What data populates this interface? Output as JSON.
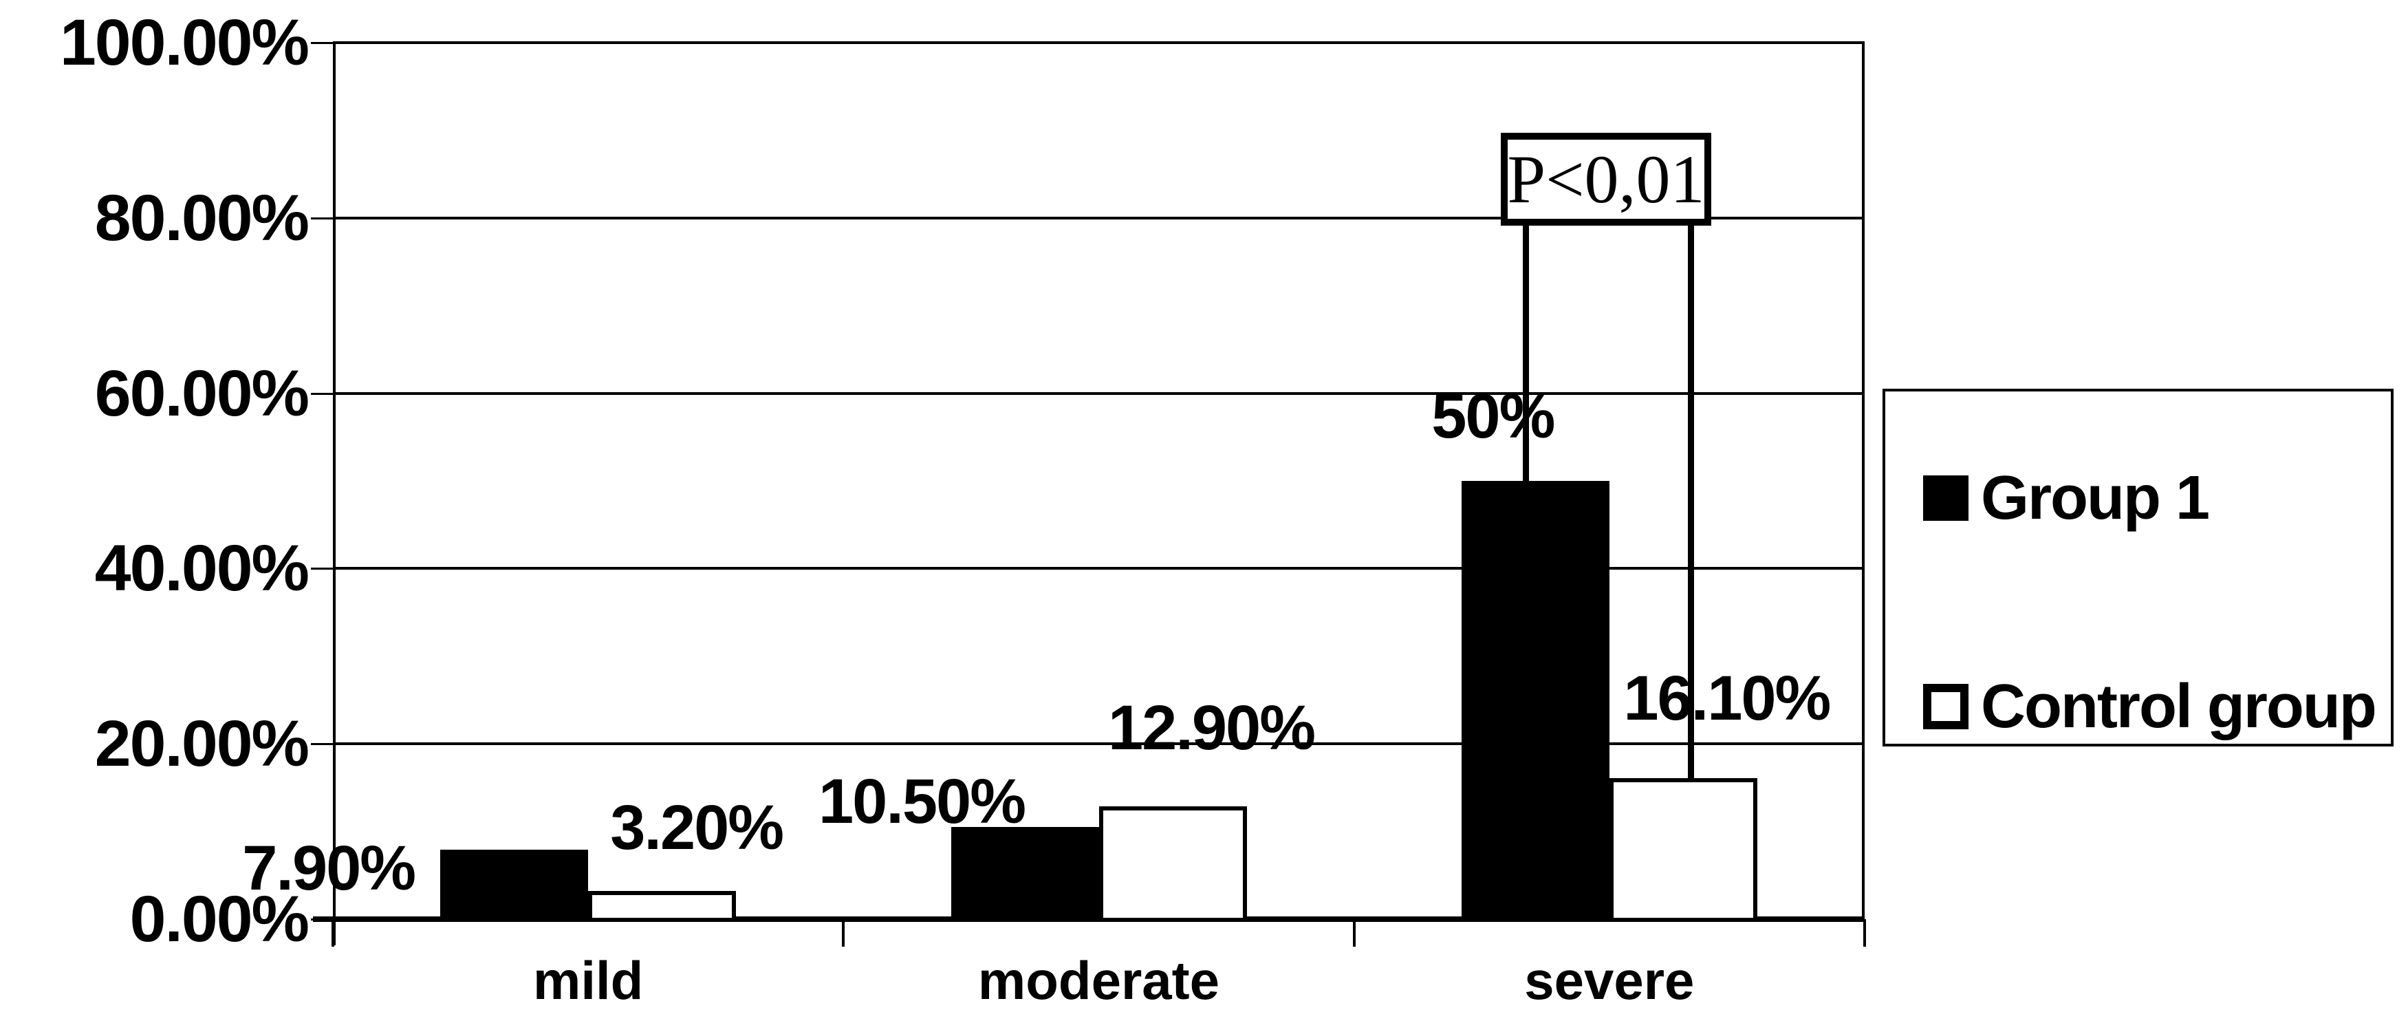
{
  "chart_data": {
    "type": "bar",
    "title": "",
    "categories": [
      "mild",
      "moderate",
      "severe"
    ],
    "series": [
      {
        "name": "Group 1",
        "color": "#000000",
        "values": [
          7.9,
          10.5,
          50
        ],
        "labels": [
          "7.90%",
          "10.50%",
          "50%"
        ]
      },
      {
        "name": "Control group",
        "color": "#ffffff",
        "values": [
          3.2,
          12.9,
          16.1
        ],
        "labels": [
          "3.20%",
          "12.90%",
          "16.10%"
        ]
      }
    ],
    "y_axis": {
      "min": 0,
      "max": 100,
      "step": 20,
      "tick_labels": [
        "0.00%",
        "20.00%",
        "40.00%",
        "60.00%",
        "80.00%",
        "100.00%"
      ]
    },
    "grid": true,
    "legend_position": "right",
    "annotation": {
      "text": "P<0,01",
      "applies_to_category": "severe"
    },
    "colors": {
      "foreground": "#000000",
      "background": "#ffffff"
    }
  }
}
